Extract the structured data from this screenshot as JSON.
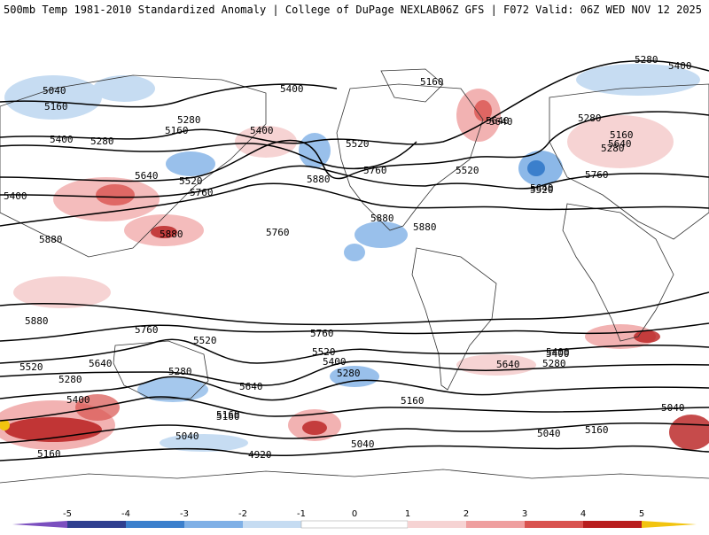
{
  "header": {
    "title_left": "500mb Temp 1981-2010 Standardized Anomaly | College of DuPage NEXLAB",
    "title_right": "06Z GFS | F072 Valid: 06Z WED NOV 12 2025"
  },
  "map": {
    "contour_labels": [
      "5040",
      "5160",
      "5400",
      "5280",
      "5160",
      "5400",
      "5280",
      "5640",
      "5520",
      "5760",
      "5400",
      "5160",
      "5280",
      "5400",
      "5640",
      "5520",
      "5760",
      "5880",
      "5880",
      "5880",
      "5880",
      "5760",
      "5400",
      "5520",
      "5640",
      "5280",
      "5160",
      "5280",
      "5640",
      "5520",
      "5760",
      "5640",
      "5880",
      "5880",
      "5760",
      "5520",
      "5640",
      "5280",
      "5400",
      "5160",
      "5280",
      "5640",
      "5760",
      "5520",
      "5400",
      "5280",
      "5400",
      "5160",
      "5160",
      "5040",
      "4920",
      "5040",
      "5040",
      "5160",
      "5040",
      "5160",
      "5640",
      "5400",
      "5280",
      "5520"
    ],
    "colors": {
      "neg5": "#7b4fbf",
      "neg4": "#2f3f8f",
      "neg3": "#3b7fcc",
      "neg2": "#7fb0e6",
      "neg1": "#c6dcf2",
      "neutral": "#ffffff",
      "pos1": "#f6d3d3",
      "pos2": "#ef9f9f",
      "pos3": "#d9534f",
      "pos4": "#b81e1e",
      "pos5": "#8c0b0b",
      "overflow_pos": "#f2c40f"
    }
  },
  "colorbar": {
    "ticks": [
      "-5",
      "-4",
      "-3",
      "-2",
      "-1",
      "0",
      "1",
      "2",
      "3",
      "4",
      "5"
    ]
  }
}
